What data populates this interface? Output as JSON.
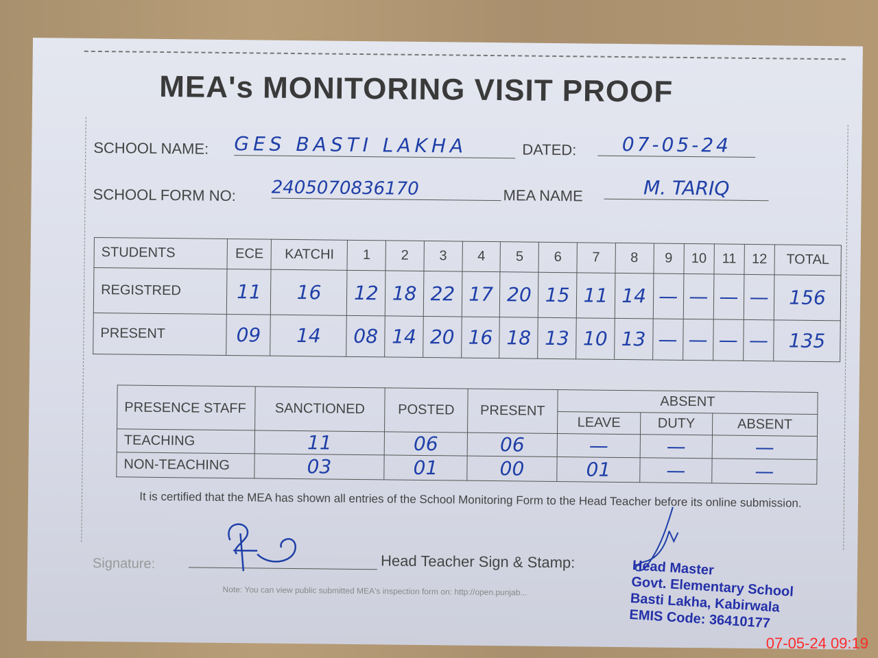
{
  "title": "MEA's MONITORING VISIT PROOF",
  "header": {
    "school_name_label": "SCHOOL NAME:",
    "school_name": "GES BASTI LAKHA",
    "dated_label": "DATED:",
    "dated": "07-05-24",
    "form_no_label": "SCHOOL FORM NO:",
    "form_no": "2405070836170",
    "mea_name_label": "MEA NAME",
    "mea_name": "M. TARIQ"
  },
  "students": {
    "headers": [
      "STUDENTS",
      "ECE",
      "KATCHI",
      "1",
      "2",
      "3",
      "4",
      "5",
      "6",
      "7",
      "8",
      "9",
      "10",
      "11",
      "12",
      "TOTAL"
    ],
    "rows": [
      {
        "label": "REGISTRED",
        "values": [
          "11",
          "16",
          "12",
          "18",
          "22",
          "17",
          "20",
          "15",
          "11",
          "14",
          "—",
          "—",
          "—",
          "—",
          "156"
        ]
      },
      {
        "label": "PRESENT",
        "values": [
          "09",
          "14",
          "08",
          "14",
          "20",
          "16",
          "18",
          "13",
          "10",
          "13",
          "—",
          "—",
          "—",
          "—",
          "135"
        ]
      }
    ]
  },
  "staff": {
    "headers": {
      "presence": "PRESENCE STAFF",
      "sanctioned": "SANCTIONED",
      "posted": "POSTED",
      "present": "PRESENT",
      "absent": "ABSENT",
      "leave": "LEAVE",
      "duty": "DUTY",
      "absent_sub": "ABSENT"
    },
    "rows": [
      {
        "label": "TEACHING",
        "values": [
          "11",
          "06",
          "06",
          "—",
          "—",
          "—"
        ]
      },
      {
        "label": "NON-TEACHING",
        "values": [
          "03",
          "01",
          "00",
          "01",
          "—",
          "—"
        ]
      }
    ]
  },
  "certification": "It is certified that the MEA has shown all entries of the School Monitoring Form to the Head Teacher before its online submission.",
  "signature_label": "Signature:",
  "head_teacher_label": "Head Teacher Sign & Stamp:",
  "note": "Note: You can view public submitted MEA's inspection form on: http://open.punjab...",
  "stamp": {
    "line1": "Head Master",
    "line2": "Govt. Elementary School",
    "line3": "Basti Lakha, Kabirwala",
    "line4": "EMIS Code: 36410177"
  },
  "timestamp": "07-05-24  09:19"
}
